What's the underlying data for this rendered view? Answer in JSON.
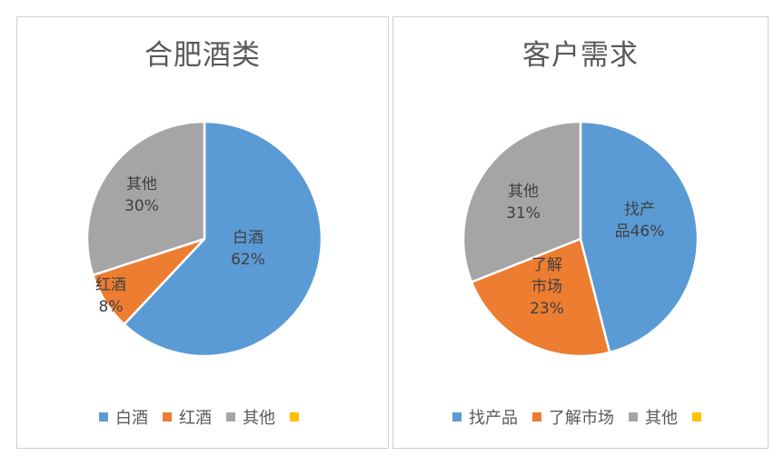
{
  "chart_data": [
    {
      "type": "pie",
      "title": "合肥酒类",
      "categories": [
        "白酒",
        "红酒",
        "其他",
        ""
      ],
      "values": [
        62,
        8,
        30,
        0
      ],
      "labels": [
        [
          "白酒",
          "62%"
        ],
        [
          "红酒",
          "8%"
        ],
        [
          "其他",
          "30%"
        ],
        null
      ],
      "colors": [
        "#5B9BD5",
        "#ED7D31",
        "#A5A5A5",
        "#FFC000"
      ],
      "legend_position": "bottom"
    },
    {
      "type": "pie",
      "title": "客户需求",
      "categories": [
        "找产品",
        "了解市场",
        "其他",
        ""
      ],
      "values": [
        46,
        23,
        31,
        0
      ],
      "labels": [
        [
          "找产",
          "品46%"
        ],
        [
          "了解",
          "市场",
          "23%"
        ],
        [
          "其他",
          "31%"
        ],
        null
      ],
      "colors": [
        "#5B9BD5",
        "#ED7D31",
        "#A5A5A5",
        "#FFC000"
      ],
      "legend_position": "bottom"
    }
  ]
}
